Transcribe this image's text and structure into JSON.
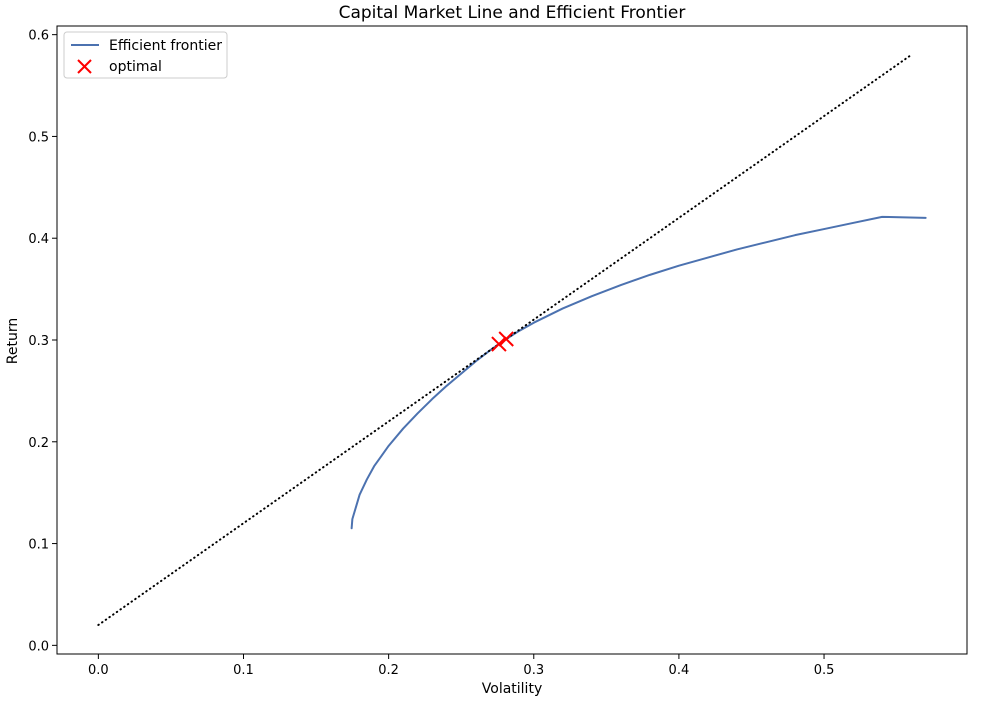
{
  "chart_data": {
    "type": "line",
    "title": "Capital Market Line and Efficient Frontier",
    "xlabel": "Volatility",
    "ylabel": "Return",
    "xlim": [
      -0.0285,
      0.5985
    ],
    "ylim": [
      -0.0085,
      0.6085
    ],
    "x_ticks": [
      0.0,
      0.1,
      0.2,
      0.3,
      0.4,
      0.5
    ],
    "x_tick_labels": [
      "0.0",
      "0.1",
      "0.2",
      "0.3",
      "0.4",
      "0.5"
    ],
    "y_ticks": [
      0.0,
      0.1,
      0.2,
      0.3,
      0.4,
      0.5,
      0.6
    ],
    "y_tick_labels": [
      "0.0",
      "0.1",
      "0.2",
      "0.3",
      "0.4",
      "0.5",
      "0.6"
    ],
    "grid": false,
    "legend_position": "top-left",
    "series": [
      {
        "name": "Efficient frontier",
        "kind": "line",
        "color": "#4c72b0",
        "x": [
          0.1745,
          0.175,
          0.1775,
          0.18,
          0.185,
          0.19,
          0.195,
          0.2,
          0.21,
          0.22,
          0.23,
          0.24,
          0.25,
          0.26,
          0.27,
          0.28,
          0.29,
          0.3,
          0.32,
          0.34,
          0.36,
          0.38,
          0.4,
          0.42,
          0.44,
          0.46,
          0.48,
          0.5,
          0.52,
          0.54,
          0.57
        ],
        "y": [
          0.115,
          0.124,
          0.136,
          0.148,
          0.163,
          0.176,
          0.186,
          0.196,
          0.213,
          0.228,
          0.242,
          0.255,
          0.267,
          0.279,
          0.29,
          0.3,
          0.309,
          0.317,
          0.331,
          0.343,
          0.354,
          0.364,
          0.373,
          0.381,
          0.389,
          0.396,
          0.403,
          0.409,
          0.415,
          0.421,
          0.42
        ]
      },
      {
        "name": "",
        "kind": "dotted-line",
        "color": "#000000",
        "x": [
          0.0,
          0.56
        ],
        "y": [
          0.02,
          0.58
        ]
      },
      {
        "name": "optimal",
        "kind": "scatter",
        "marker": "x",
        "color": "#ff0000",
        "x": [
          0.276,
          0.281
        ],
        "y": [
          0.296,
          0.301
        ]
      }
    ]
  }
}
